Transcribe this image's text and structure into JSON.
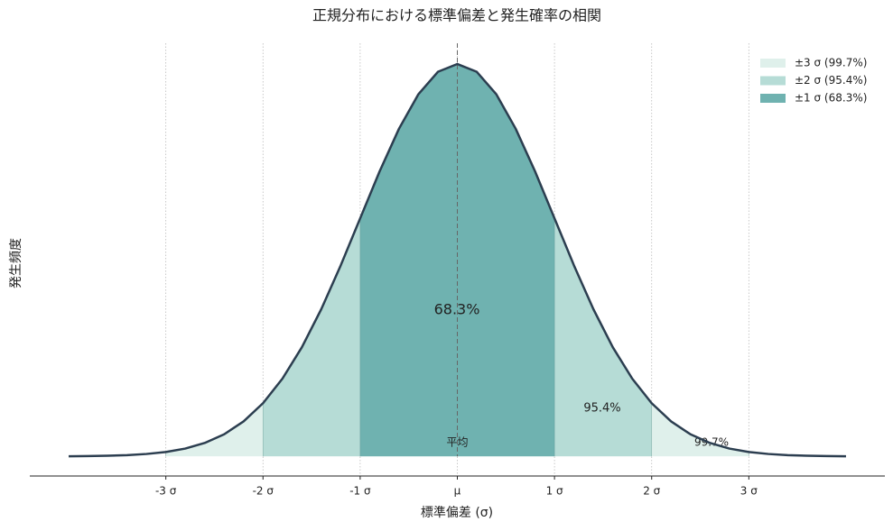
{
  "chart_data": {
    "type": "area",
    "title": "正規分布における標準偏差と発生確率の相関",
    "xlabel": "標準偏差 (σ)",
    "ylabel": "発生頻度",
    "mean_label": "平均",
    "line_color": "#2c3e50",
    "x": [
      -4,
      -3.8,
      -3.6,
      -3.4,
      -3.2,
      -3,
      -2.8,
      -2.6,
      -2.4,
      -2.2,
      -2,
      -1.8,
      -1.6,
      -1.4,
      -1.2,
      -1,
      -0.8,
      -0.6,
      -0.4,
      -0.2,
      0,
      0.2,
      0.4,
      0.6,
      0.8,
      1,
      1.2,
      1.4,
      1.6,
      1.8,
      2,
      2.2,
      2.4,
      2.6,
      2.8,
      3,
      3.2,
      3.4,
      3.6,
      3.8,
      4
    ],
    "values": [
      0.0001,
      0.0003,
      0.0006,
      0.0012,
      0.0024,
      0.0044,
      0.0079,
      0.0136,
      0.0224,
      0.0355,
      0.054,
      0.079,
      0.1109,
      0.1497,
      0.1942,
      0.242,
      0.2897,
      0.3332,
      0.3683,
      0.391,
      0.3989,
      0.391,
      0.3683,
      0.3332,
      0.2897,
      0.242,
      0.1942,
      0.1497,
      0.1109,
      0.079,
      0.054,
      0.0355,
      0.0224,
      0.0136,
      0.0079,
      0.0044,
      0.0024,
      0.0012,
      0.0006,
      0.0003,
      0.0001
    ],
    "bands": [
      {
        "name": "±3 σ (99.7%)",
        "from": -3,
        "to": 3,
        "color": "#dff0eb",
        "label": "99.7%"
      },
      {
        "name": "±2 σ (95.4%)",
        "from": -2,
        "to": 2,
        "color": "#b6dcd6",
        "label": "95.4%"
      },
      {
        "name": "±1 σ (68.3%)",
        "from": -1,
        "to": 1,
        "color": "#6fb2b0",
        "label": "68.3%"
      }
    ],
    "xlim": [
      -4.4,
      4.4
    ],
    "ylim": [
      -0.02,
      0.42
    ],
    "xticks": [
      {
        "value": -3,
        "label": "-3 σ"
      },
      {
        "value": -2,
        "label": "-2 σ"
      },
      {
        "value": -1,
        "label": "-1 σ"
      },
      {
        "value": 0,
        "label": "μ"
      },
      {
        "value": 1,
        "label": "1 σ"
      },
      {
        "value": 2,
        "label": "2 σ"
      },
      {
        "value": 3,
        "label": "3 σ"
      }
    ],
    "grid": true,
    "legend": "upper right"
  }
}
